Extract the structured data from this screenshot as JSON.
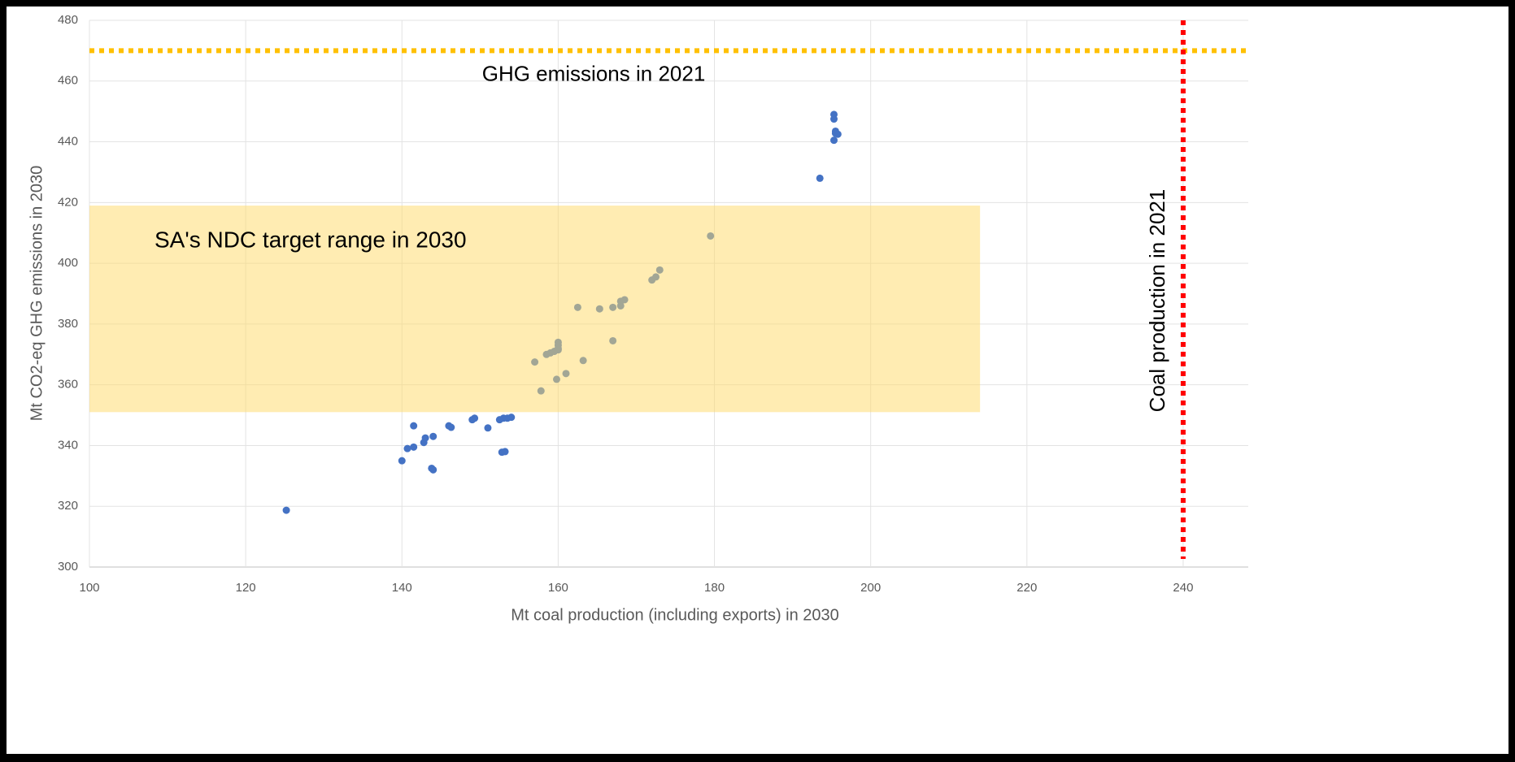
{
  "chart_data": {
    "type": "scatter",
    "xlabel": "Mt coal production (including exports) in 2030",
    "ylabel": "Mt CO2-eq GHG emissions in 2030",
    "x": [
      125.2,
      140,
      140.7,
      141.5,
      141.5,
      142.8,
      143,
      144,
      143.8,
      144,
      146,
      146.3,
      149,
      149.3,
      151,
      152.5,
      153,
      153.2,
      152.8,
      153.5,
      154,
      157,
      157.8,
      158.5,
      159,
      159.5,
      160,
      160,
      160,
      160,
      159.8,
      161,
      162.5,
      163.2,
      165.3,
      167,
      167,
      168,
      168,
      168.5,
      172,
      172.5,
      173,
      179.5,
      193.5,
      195.3,
      195.3,
      195.5,
      195.5,
      195.8,
      195.3
    ],
    "values": [
      318.7,
      335,
      339,
      339.5,
      346.5,
      341,
      342.5,
      343,
      332.5,
      332,
      346.5,
      346,
      348.5,
      349,
      345.8,
      348.5,
      349,
      338,
      337.8,
      349,
      349.3,
      367.5,
      358,
      370,
      370.5,
      371,
      374,
      373,
      372,
      371.5,
      361.8,
      363.7,
      385.5,
      368,
      385,
      385.5,
      374.5,
      386,
      387.5,
      388,
      394.5,
      395.5,
      397.8,
      409,
      428,
      449,
      447.5,
      443.5,
      442.8,
      442.5,
      440.5
    ],
    "color": "#4472c4",
    "xlim": [
      100,
      250
    ],
    "xticks": [
      100,
      120,
      140,
      160,
      180,
      200,
      220,
      240
    ],
    "ylim": [
      300,
      480
    ],
    "yticks": [
      300,
      320,
      340,
      360,
      380,
      400,
      420,
      440,
      460,
      480
    ],
    "grid": true,
    "band": {
      "label": "SA's NDC target range in 2030",
      "xlim": [
        100,
        214
      ],
      "ylim": [
        351,
        419
      ],
      "color": "#ffd966"
    },
    "reference_lines": [
      {
        "axis": "y",
        "value": 470,
        "label": "GHG emissions in 2021",
        "color": "#ffc000"
      },
      {
        "axis": "x",
        "value": 240,
        "label": "Coal production in 2021",
        "color": "#ff0000"
      }
    ]
  }
}
